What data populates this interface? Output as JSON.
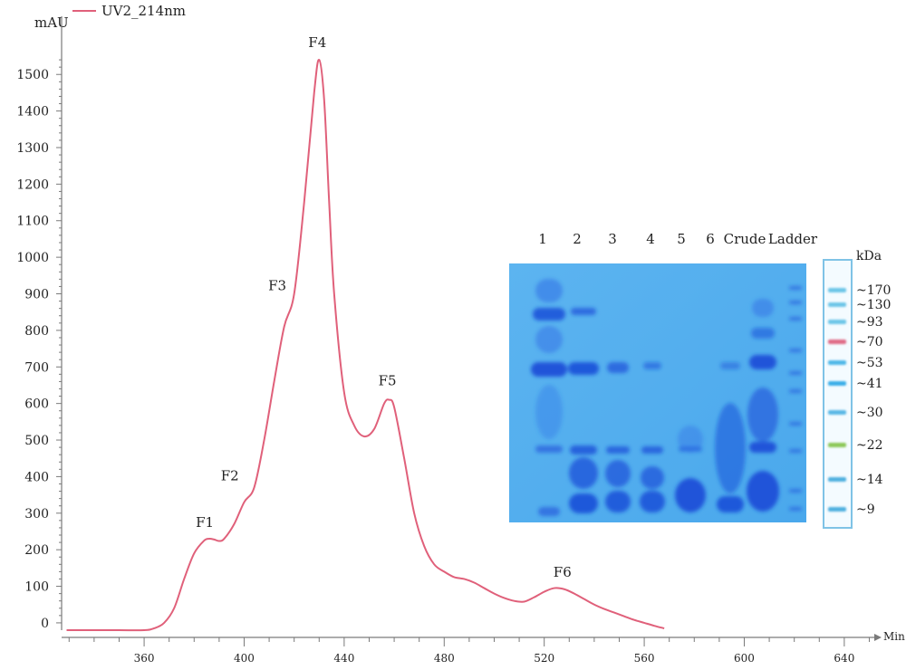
{
  "legend": {
    "label": "UV2_214nm",
    "color": "#e0607a"
  },
  "chart_data": {
    "type": "line",
    "ylabel": "mAU",
    "xlabel": "Min",
    "xlim": [
      327,
      652
    ],
    "ylim": [
      -20,
      1560
    ],
    "x_ticks": [
      360,
      400,
      440,
      480,
      520,
      560,
      600,
      640
    ],
    "y_ticks": [
      0,
      100,
      200,
      300,
      400,
      500,
      600,
      700,
      800,
      900,
      1000,
      1100,
      1200,
      1300,
      1400,
      1500
    ],
    "grid": false,
    "legend_position": "top-left",
    "series": [
      {
        "name": "UV2_214nm",
        "color": "#e0607a",
        "x": [
          329,
          340,
          350,
          360,
          364,
          368,
          372,
          376,
          380,
          384,
          386,
          388,
          390,
          392,
          396,
          400,
          404,
          408,
          412,
          416,
          420,
          424,
          428,
          430,
          432,
          434,
          436,
          440,
          444,
          448,
          452,
          456,
          458,
          460,
          464,
          468,
          472,
          476,
          480,
          484,
          488,
          492,
          496,
          500,
          504,
          508,
          512,
          516,
          520,
          524,
          528,
          532,
          536,
          540,
          544,
          548,
          552,
          556,
          560,
          564,
          568
        ],
        "y": [
          -20,
          -20,
          -20,
          -20,
          -15,
          0,
          40,
          120,
          190,
          225,
          230,
          228,
          224,
          230,
          270,
          330,
          370,
          500,
          660,
          810,
          900,
          1150,
          1450,
          1540,
          1430,
          1150,
          900,
          630,
          540,
          510,
          530,
          600,
          610,
          590,
          450,
          300,
          210,
          160,
          140,
          125,
          120,
          110,
          95,
          80,
          68,
          60,
          58,
          70,
          85,
          95,
          92,
          80,
          65,
          50,
          38,
          28,
          18,
          8,
          0,
          -8,
          -15
        ]
      }
    ],
    "annotations": [
      {
        "label": "F1",
        "x": 385,
        "y": 232
      },
      {
        "label": "F2",
        "x": 395,
        "y": 360
      },
      {
        "label": "F3",
        "x": 414,
        "y": 880
      },
      {
        "label": "F4",
        "x": 430,
        "y": 1545
      },
      {
        "label": "F5",
        "x": 458,
        "y": 620
      },
      {
        "label": "F6",
        "x": 528,
        "y": 96
      }
    ]
  },
  "gel": {
    "lane_labels": [
      "1",
      "2",
      "3",
      "4",
      "5",
      "6",
      "Crude",
      "Ladder"
    ],
    "unit_label": "kDa",
    "markers": [
      {
        "label": "~170",
        "color": "#6ec6e8"
      },
      {
        "label": "~130",
        "color": "#6ec6e8"
      },
      {
        "label": "~93",
        "color": "#6ec6e8"
      },
      {
        "label": "~70",
        "color": "#e06a86"
      },
      {
        "label": "~53",
        "color": "#4fb8e8"
      },
      {
        "label": "~41",
        "color": "#3aaee8"
      },
      {
        "label": "~30",
        "color": "#5ab8e6"
      },
      {
        "label": "~22",
        "color": "#8cc858"
      },
      {
        "label": "~14",
        "color": "#4fb0e0"
      },
      {
        "label": "~9",
        "color": "#4fb0e0"
      }
    ]
  }
}
